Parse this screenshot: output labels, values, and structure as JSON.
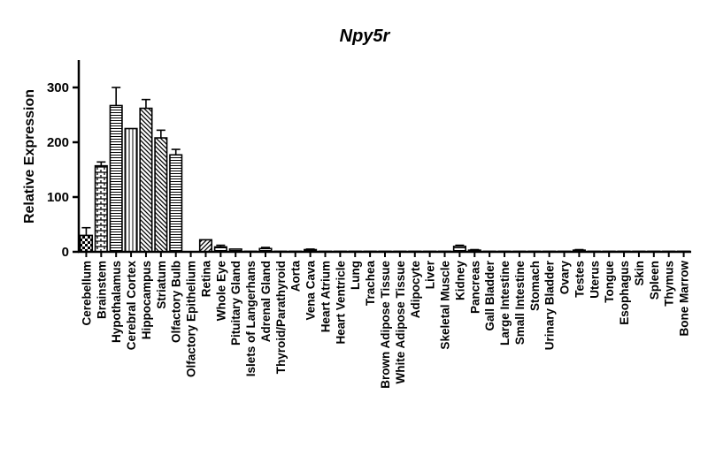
{
  "chart_data": {
    "type": "bar",
    "title": "Npy5r",
    "xlabel": "",
    "ylabel": "Relative Expression",
    "ylim": [
      0,
      350
    ],
    "yticks": [
      "0",
      "100",
      "200",
      "300"
    ],
    "ytick_values": [
      0,
      100,
      200,
      300
    ],
    "grid": false,
    "categories": [
      "Cerebellum",
      "Brainstem",
      "Hypothalamus",
      "Cerebral Cortex",
      "Hippocampus",
      "Striatum",
      "Olfactory Bulb",
      "Olfactory Epithelium",
      "Retina",
      "Whole Eye",
      "Pituitary Gland",
      "Islets of Langerhans",
      "Adrenal Gland",
      "Thyroid/Parathyroid",
      "Aorta",
      "Vena Cava",
      "Heart Atrium",
      "Heart Ventricle",
      "Lung",
      "Trachea",
      "Brown Adipose Tissue",
      "White Adipose Tissue",
      "Adipocyte",
      "Liver",
      "Skeletal Muscle",
      "Kidney",
      "Pancreas",
      "Gall Bladder",
      "Large Intestine",
      "Small Intestine",
      "Stomach",
      "Urinary Bladder",
      "Ovary",
      "Testes",
      "Uterus",
      "Tongue",
      "Esophagus",
      "Skin",
      "Spleen",
      "Thymus",
      "Bone Marrow"
    ],
    "values": [
      30,
      157,
      267,
      225,
      262,
      208,
      177,
      0,
      22,
      9,
      5,
      1,
      6,
      1,
      1,
      4,
      1,
      1,
      1,
      1,
      1,
      1,
      1,
      1,
      1,
      10,
      3,
      1,
      1,
      1,
      1,
      1,
      1,
      3,
      1,
      1,
      1,
      1,
      1,
      1,
      1
    ],
    "errors": [
      14,
      7,
      33,
      0,
      16,
      14,
      10,
      0,
      0,
      3,
      0,
      0,
      2,
      0,
      0,
      1,
      0,
      0,
      0,
      0,
      0,
      0,
      0,
      0,
      0,
      2,
      1,
      0,
      0,
      0,
      0,
      0,
      0,
      1,
      0,
      0,
      0,
      0,
      0,
      0,
      0
    ],
    "patterns": [
      "checker",
      "brick",
      "hlines",
      "vlines",
      "diag-down",
      "diag-down",
      "hlines",
      "none",
      "diag-up",
      "hlines",
      "hlines",
      "hlines",
      "hlines",
      "hlines",
      "hlines",
      "hlines",
      "hlines",
      "hlines",
      "hlines",
      "hlines",
      "hlines",
      "hlines",
      "hlines",
      "hlines",
      "hlines",
      "hlines",
      "hlines",
      "hlines",
      "hlines",
      "hlines",
      "hlines",
      "hlines",
      "hlines",
      "hlines",
      "hlines",
      "hlines",
      "hlines",
      "hlines",
      "hlines",
      "hlines",
      "hlines"
    ],
    "colors": {
      "ink": "#000000",
      "fill": "#ffffff"
    }
  }
}
